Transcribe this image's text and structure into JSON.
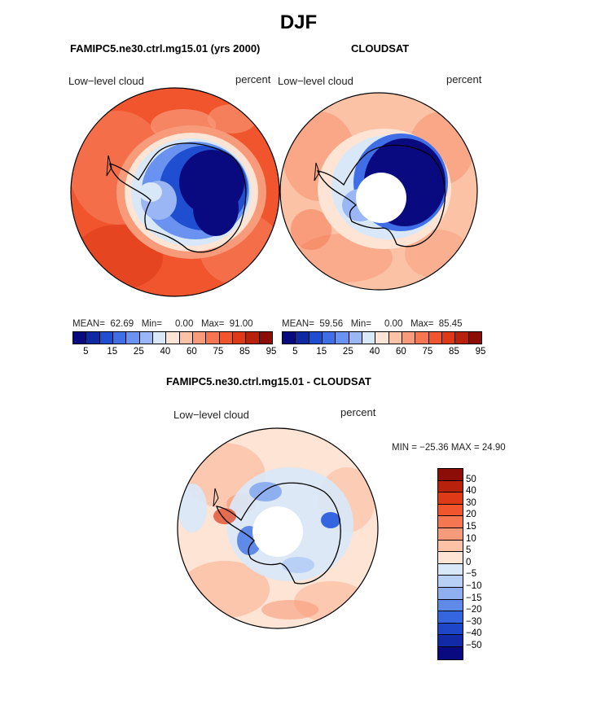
{
  "main_title": "DJF",
  "panel1": {
    "title": "FAMIPC5.ne30.ctrl.mg15.01 (yrs 2000)",
    "left_label": "Low−level cloud",
    "right_label": "percent",
    "mean_label": "MEAN=",
    "mean": "62.69",
    "min_label": "Min=",
    "min": "0.00",
    "max_label": "Max=",
    "max": "91.00"
  },
  "panel2": {
    "title": "CLOUDSAT",
    "left_label": "Low−level cloud",
    "right_label": "percent",
    "mean_label": "MEAN=",
    "mean": "59.56",
    "min_label": "Min=",
    "min": "0.00",
    "max_label": "Max=",
    "max": "85.45"
  },
  "panel3": {
    "title": "FAMIPC5.ne30.ctrl.mg15.01 - CLOUDSAT",
    "left_label": "Low−level cloud",
    "right_label": "percent",
    "minmax": "MIN = −25.36 MAX =   24.90"
  },
  "colorbar_top": {
    "colors": [
      "#0a0a80",
      "#0f2aa0",
      "#1f4fd0",
      "#3f6ee6",
      "#6a92f0",
      "#9ab6f5",
      "#d8e8f8",
      "#fde4d4",
      "#fbc2a6",
      "#f89b7a",
      "#f57650",
      "#f0552e",
      "#de3a18",
      "#b8220c",
      "#8c0c06"
    ],
    "ticks": [
      "5",
      "15",
      "25",
      "40",
      "60",
      "75",
      "85",
      "95"
    ]
  },
  "colorbar_diff": {
    "colors": [
      "#8c0c06",
      "#b8220c",
      "#de3a18",
      "#f0552e",
      "#f57650",
      "#f89b7a",
      "#fbc2a6",
      "#fde4d4",
      "#d8e8f8",
      "#b8d0f5",
      "#8fb0f0",
      "#5f8ae8",
      "#3566e0",
      "#1f46c8",
      "#122aa8",
      "#0a0a80"
    ],
    "labels": [
      "50",
      "40",
      "30",
      "20",
      "15",
      "10",
      "5",
      "0",
      "−5",
      "−10",
      "−15",
      "−20",
      "−30",
      "−40",
      "−50"
    ]
  }
}
